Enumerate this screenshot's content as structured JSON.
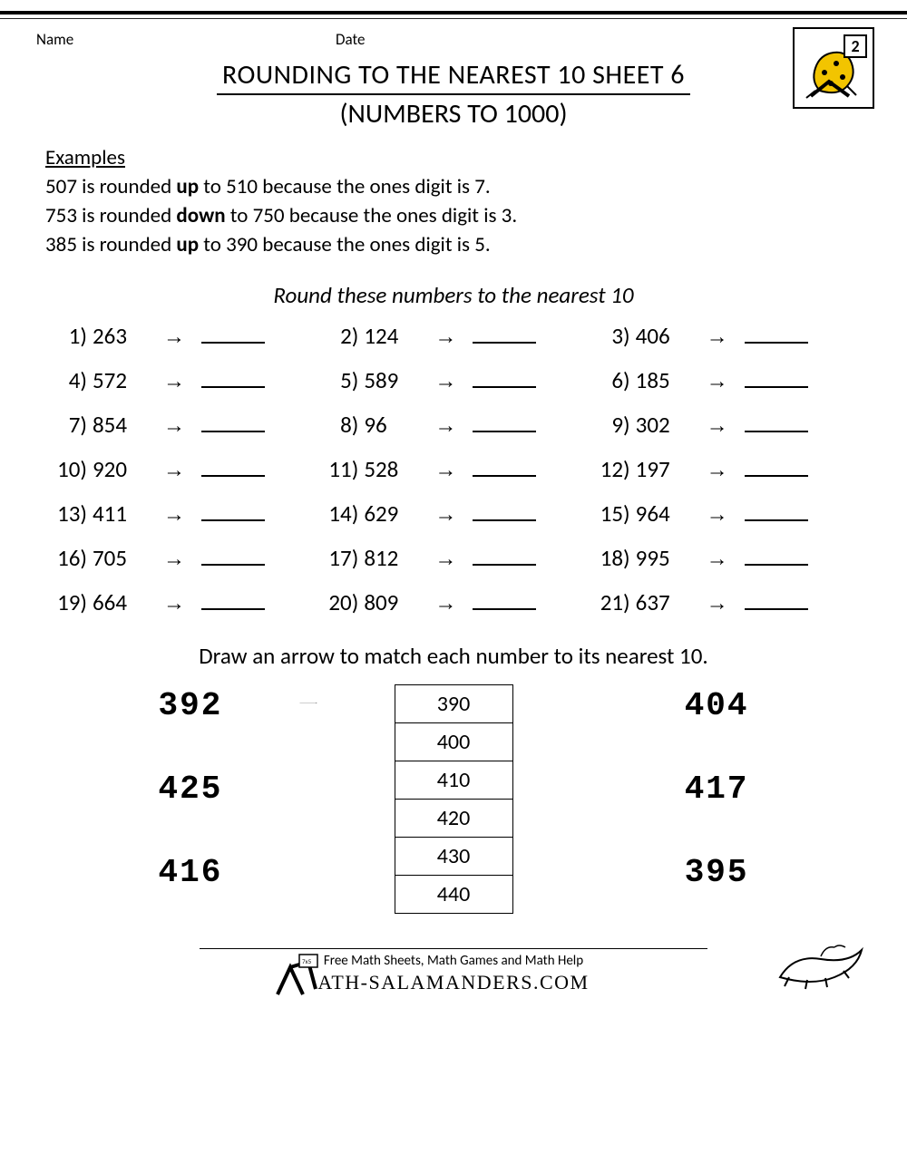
{
  "header": {
    "name_label": "Name",
    "date_label": "Date"
  },
  "title": {
    "line1": "ROUNDING TO THE NEAREST 10 SHEET 6",
    "line2": "(NUMBERS TO 1000)"
  },
  "badge": {
    "grade": "2"
  },
  "examples": {
    "heading": "Examples",
    "lines": [
      {
        "n": "507",
        "dir": "up",
        "to": "510",
        "digit": "7"
      },
      {
        "n": "753",
        "dir": "down",
        "to": "750",
        "digit": "3"
      },
      {
        "n": "385",
        "dir": "up",
        "to": "390",
        "digit": "5"
      }
    ]
  },
  "instruction1": "Round these numbers to the nearest 10",
  "problems": [
    {
      "i": "1)",
      "v": "263"
    },
    {
      "i": "2)",
      "v": "124"
    },
    {
      "i": "3)",
      "v": "406"
    },
    {
      "i": "4)",
      "v": "572"
    },
    {
      "i": "5)",
      "v": "589"
    },
    {
      "i": "6)",
      "v": "185"
    },
    {
      "i": "7)",
      "v": "854"
    },
    {
      "i": "8)",
      "v": "96"
    },
    {
      "i": "9)",
      "v": "302"
    },
    {
      "i": "10)",
      "v": "920"
    },
    {
      "i": "11)",
      "v": "528"
    },
    {
      "i": "12)",
      "v": "197"
    },
    {
      "i": "13)",
      "v": "411"
    },
    {
      "i": "14)",
      "v": "629"
    },
    {
      "i": "15)",
      "v": "964"
    },
    {
      "i": "16)",
      "v": "705"
    },
    {
      "i": "17)",
      "v": "812"
    },
    {
      "i": "18)",
      "v": "995"
    },
    {
      "i": "19)",
      "v": "664"
    },
    {
      "i": "20)",
      "v": "809"
    },
    {
      "i": "21)",
      "v": "637"
    }
  ],
  "arrow_glyph": "→",
  "instruction2": "Draw an arrow to match each number to its nearest 10.",
  "match": {
    "left": [
      "392",
      "425",
      "416"
    ],
    "right": [
      "404",
      "417",
      "395"
    ],
    "targets": [
      "390",
      "400",
      "410",
      "420",
      "430",
      "440"
    ]
  },
  "footer": {
    "line1": "Free Math Sheets, Math Games and Math Help",
    "line2": "ATH-SALAMANDERS.COM"
  },
  "colors": {
    "text": "#000000",
    "bg": "#ffffff",
    "salamander_spots": "#f2c400",
    "salamander_body": "#111111"
  }
}
